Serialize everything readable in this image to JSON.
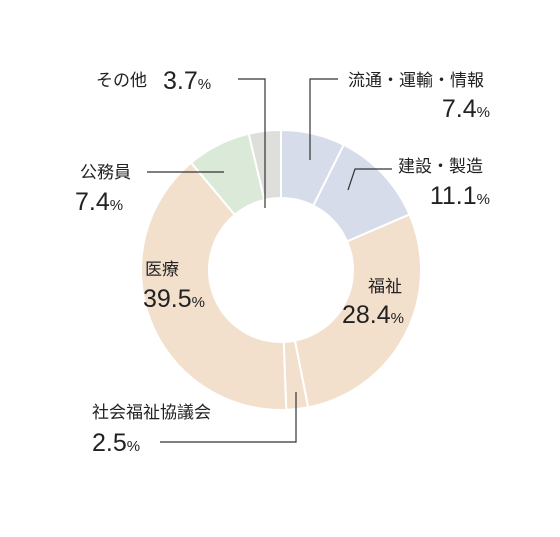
{
  "chart_data": {
    "type": "pie",
    "categories": [
      "流通・運輸・情報",
      "建設・製造",
      "福祉",
      "社会福祉協議会",
      "医療",
      "公務員",
      "その他"
    ],
    "values": [
      7.4,
      11.1,
      28.4,
      2.5,
      39.5,
      7.4,
      3.7
    ],
    "value_labels": [
      "7.4",
      "11.1",
      "28.4",
      "2.5",
      "39.5",
      "7.4",
      "3.7"
    ],
    "unit": "%",
    "colors": [
      "#d7dcea",
      "#d7dcea",
      "#f2e0cd",
      "#f2e0cd",
      "#f2e0cd",
      "#dbe9d9",
      "#dededb"
    ],
    "start": "top",
    "direction": "clockwise",
    "donut": true,
    "legend": "none"
  }
}
